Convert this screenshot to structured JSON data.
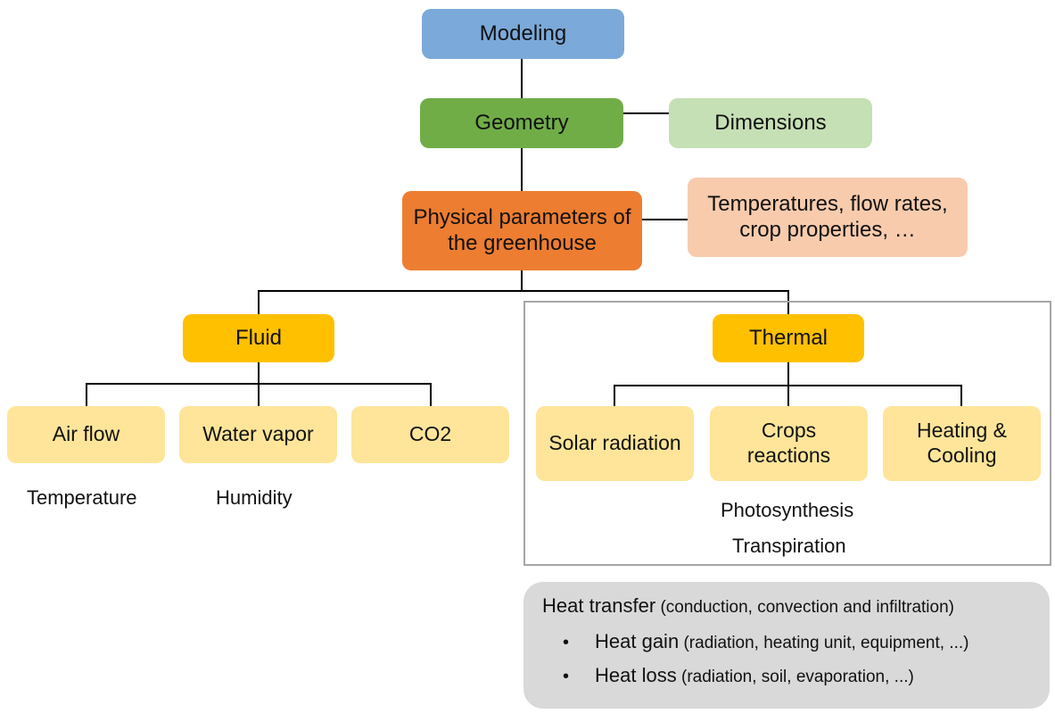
{
  "nodes": {
    "modeling": "Modeling",
    "geometry": "Geometry",
    "dimensions": "Dimensions",
    "physical": "Physical parameters of\nthe greenhouse",
    "physical_details": "Temperatures, flow rates,\ncrop properties, …",
    "fluid": "Fluid",
    "thermal": "Thermal",
    "air_flow": "Air flow",
    "water_vapor": "Water vapor",
    "co2": "CO2",
    "solar_radiation": "Solar radiation",
    "crops_reactions": "Crops\nreactions",
    "heating_cooling": "Heating &\nCooling"
  },
  "labels": {
    "temperature": "Temperature",
    "humidity": "Humidity",
    "photosynthesis": "Photosynthesis",
    "transpiration": "Transpiration"
  },
  "heat_panel": {
    "title_main": "Heat transfer",
    "title_detail": " (conduction, convection and infiltration)",
    "bullet_symbol": "•",
    "items": [
      {
        "main": "Heat gain",
        "detail": " (radiation, heating unit, equipment, ...)"
      },
      {
        "main": "Heat loss",
        "detail": " (radiation, soil, evaporation, ...)"
      }
    ]
  }
}
